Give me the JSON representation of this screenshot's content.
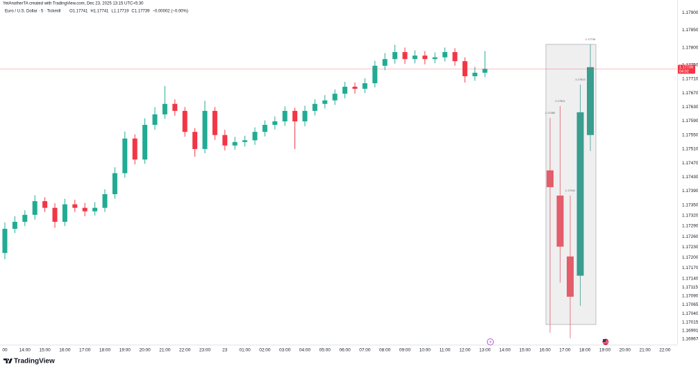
{
  "chart_data": {
    "type": "candlestick",
    "subtitle": "YetAnotherTA created with TradingView.com, Dec 23, 2025 13:15 UTC+5:30",
    "title": "Euro / U.S. Dollar · 5 · Tickmill",
    "legend_values": [
      "O1.17741",
      "H1.17741",
      "L1.17719",
      "C1.17739",
      "−0.00002 (−0.00%)"
    ],
    "brand": "TradingView",
    "up_color": "#22ab94",
    "down_color": "#f23645",
    "categories": [
      "00",
      null,
      "14:00",
      null,
      "15:00",
      null,
      "16:00",
      null,
      "17:00",
      null,
      "18:00",
      null,
      "19:00",
      null,
      "20:00",
      null,
      "21:00",
      null,
      "22:00",
      null,
      "23:00",
      null,
      "23",
      null,
      "01:00",
      null,
      "02:00",
      null,
      "03:00",
      null,
      "04:00",
      null,
      "05:00",
      null,
      "06:00",
      null,
      "07:00",
      null,
      "08:00",
      null,
      "09:00",
      null,
      "10:00",
      null,
      "11:00",
      null,
      "12:00",
      null,
      "13:00",
      null,
      "14:00",
      null,
      "15:00",
      null,
      "16:00",
      null,
      "17:00",
      null,
      "18:00",
      null,
      "19:00",
      null,
      "20:00",
      null,
      "21:00",
      null,
      "22:00"
    ],
    "open": [
      1.17213,
      1.17282,
      1.17302,
      1.17322,
      1.17361,
      1.17342,
      1.17302,
      1.17352,
      1.17342,
      1.17332,
      1.17342,
      1.17381,
      1.17441,
      1.1754,
      1.1748,
      1.17579,
      1.17609,
      1.17639,
      1.17619,
      1.17559,
      1.1751,
      1.17619,
      1.1755,
      1.1752,
      1.1753,
      1.17535,
      1.17559,
      1.17579,
      1.17589,
      1.17619,
      1.17589,
      1.17619,
      1.17639,
      1.17649,
      1.17668,
      1.17688,
      1.17682,
      1.17698,
      1.17748,
      1.17767,
      1.17787,
      1.17767,
      1.17777,
      1.17767,
      1.17772,
      1.17787,
      1.17761,
      1.17718,
      1.17728,
      null,
      null,
      null,
      null,
      null,
      null,
      null,
      null,
      null,
      null,
      null,
      null,
      null,
      null,
      null,
      null,
      null,
      null
    ],
    "high": [
      1.173,
      1.17318,
      1.17335,
      1.17378,
      1.17372,
      1.17355,
      1.17368,
      1.17365,
      1.17356,
      1.17358,
      1.17395,
      1.17458,
      1.1756,
      1.17552,
      1.17598,
      1.1763,
      1.1769,
      1.17652,
      1.1763,
      1.1757,
      1.17648,
      1.1763,
      1.17565,
      1.17545,
      1.17548,
      1.17572,
      1.17592,
      1.17603,
      1.17632,
      1.17628,
      1.17634,
      1.17652,
      1.17664,
      1.1768,
      1.17702,
      1.177,
      1.17712,
      1.17762,
      1.17784,
      1.17808,
      1.178,
      1.17792,
      1.1779,
      1.17786,
      1.178,
      1.17798,
      1.17772,
      1.17745,
      1.1779,
      null,
      null,
      null,
      null,
      null,
      null,
      null,
      null,
      null,
      null,
      null,
      null,
      null,
      null,
      null,
      null,
      null,
      null
    ],
    "low": [
      1.17195,
      1.1727,
      1.1729,
      1.17308,
      1.1733,
      1.17285,
      1.1729,
      1.1733,
      1.17318,
      1.1732,
      1.1733,
      1.17368,
      1.17428,
      1.17466,
      1.17468,
      1.17565,
      1.17596,
      1.17605,
      1.17545,
      1.17488,
      1.17498,
      1.17536,
      1.17506,
      1.17508,
      1.17517,
      1.17522,
      1.17546,
      1.17566,
      1.17576,
      1.1751,
      1.17575,
      1.17606,
      1.17626,
      1.17636,
      1.17655,
      1.17668,
      1.1767,
      1.17686,
      1.17735,
      1.17754,
      1.17753,
      1.17755,
      1.17752,
      1.17755,
      1.1776,
      1.17748,
      1.177,
      1.17705,
      1.17715,
      null,
      null,
      null,
      null,
      null,
      null,
      null,
      null,
      null,
      null,
      null,
      null,
      null,
      null,
      null,
      null,
      null,
      null
    ],
    "close": [
      1.17282,
      1.17302,
      1.17322,
      1.17361,
      1.17342,
      1.17302,
      1.17352,
      1.17342,
      1.17332,
      1.17342,
      1.17381,
      1.17441,
      1.1754,
      1.1748,
      1.17579,
      1.17609,
      1.17639,
      1.17619,
      1.17559,
      1.1751,
      1.17619,
      1.1755,
      1.1752,
      1.1753,
      1.17535,
      1.17559,
      1.17579,
      1.17589,
      1.17619,
      1.17589,
      1.17619,
      1.17639,
      1.17649,
      1.17668,
      1.17688,
      1.17682,
      1.17698,
      1.17748,
      1.17767,
      1.17787,
      1.17767,
      1.17777,
      1.17767,
      1.17772,
      1.17787,
      1.17761,
      1.17718,
      1.17728,
      1.17739,
      null,
      null,
      null,
      null,
      null,
      null,
      null,
      null,
      null,
      null,
      null,
      null,
      null,
      null,
      null,
      null,
      null,
      null
    ],
    "overlay": {
      "open": [
        1.17449,
        1.17377,
        1.17203,
        1.17148,
        1.1755
      ],
      "high": [
        1.17599,
        1.17633,
        1.17377,
        1.17694,
        1.17809
      ],
      "low": [
        1.16985,
        1.17128,
        1.16969,
        1.17062,
        1.17504
      ],
      "close": [
        1.17401,
        1.17231,
        1.17088,
        1.17615,
        1.17744
      ],
      "labels": [
        "1.17480",
        "1.17521",
        "1.17041",
        "1.17613",
        "1.17739"
      ],
      "up_color": "#3a9e8f",
      "down_color": "#e35d6a"
    },
    "last_price": 1.17739,
    "countdown": "04:02",
    "ylim": [
      1.16955,
      1.17916
    ],
    "yticks": [
      {
        "value": 1.179,
        "label": "1.17900"
      },
      {
        "value": 1.1785,
        "label": "1.17850"
      },
      {
        "value": 1.178,
        "label": "1.17800"
      },
      {
        "value": 1.1775,
        "label": "1.17750"
      },
      {
        "value": 1.1771,
        "label": "1.17710"
      },
      {
        "value": 1.1767,
        "label": "1.17670"
      },
      {
        "value": 1.1763,
        "label": "1.17630"
      },
      {
        "value": 1.1759,
        "label": "1.17590"
      },
      {
        "value": 1.1755,
        "label": "1.17550"
      },
      {
        "value": 1.1751,
        "label": "1.17510"
      },
      {
        "value": 1.1747,
        "label": "1.17470"
      },
      {
        "value": 1.1743,
        "label": "1.17430"
      },
      {
        "value": 1.1739,
        "label": "1.17390"
      },
      {
        "value": 1.1735,
        "label": "1.17350"
      },
      {
        "value": 1.1732,
        "label": "1.17320"
      },
      {
        "value": 1.1729,
        "label": "1.17290"
      },
      {
        "value": 1.1726,
        "label": "1.17260"
      },
      {
        "value": 1.1723,
        "label": "1.17230"
      },
      {
        "value": 1.172,
        "label": "1.17200"
      },
      {
        "value": 1.1717,
        "label": "1.17170"
      },
      {
        "value": 1.1714,
        "label": "1.17140"
      },
      1.17115,
      {
        "value": 1.1709,
        "label": "1.17090"
      },
      1.17065,
      {
        "value": 1.1704,
        "label": "1.17040"
      },
      1.17015,
      1.16991,
      1.16967
    ]
  }
}
